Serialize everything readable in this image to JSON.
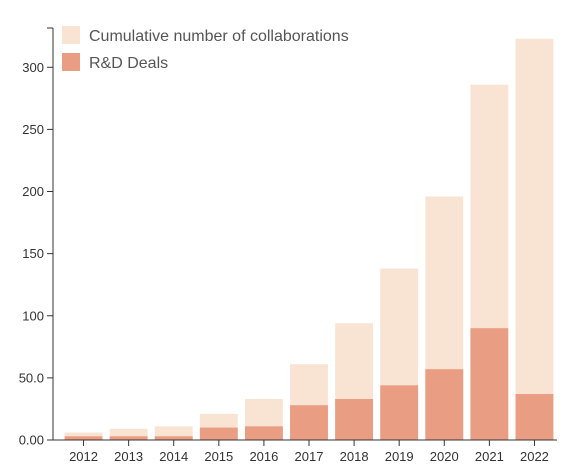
{
  "chart_data": {
    "type": "bar",
    "categories": [
      "2012",
      "2013",
      "2014",
      "2015",
      "2016",
      "2017",
      "2018",
      "2019",
      "2020",
      "2021",
      "2022"
    ],
    "series": [
      {
        "name": "Cumulative number of collaborations",
        "values": [
          6,
          9,
          11,
          21,
          33,
          61,
          94,
          138,
          196,
          286,
          323
        ],
        "color": "#f9e4d4"
      },
      {
        "name": "R&D Deals",
        "values": [
          3,
          3,
          3,
          10,
          11,
          28,
          33,
          44,
          57,
          90,
          37
        ],
        "color": "#e99d82"
      }
    ],
    "overlap": true,
    "ylim": [
      0,
      330
    ],
    "yticks": [
      0,
      50,
      100,
      150,
      200,
      250,
      300
    ],
    "ytick_labels": [
      "0.00",
      "50.0",
      "100",
      "150",
      "200",
      "250",
      "300"
    ],
    "legend_position": "top-left",
    "grid": false,
    "title": "",
    "xlabel": "",
    "ylabel": ""
  }
}
